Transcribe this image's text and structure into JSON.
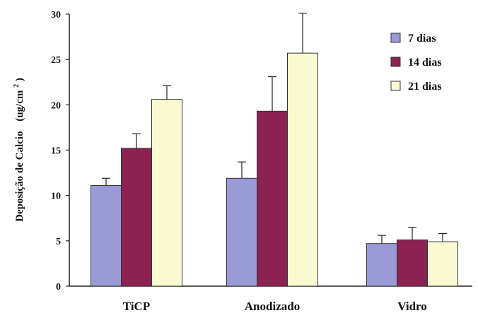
{
  "chart_data": {
    "type": "bar",
    "categories": [
      "TiCP",
      "Anodizado",
      "Vidro"
    ],
    "series": [
      {
        "name": "7 dias",
        "color": "#9a9ad6",
        "values": [
          11.1,
          11.9,
          4.7
        ],
        "errors": [
          0.8,
          1.8,
          0.9
        ]
      },
      {
        "name": "14 dias",
        "color": "#8b2252",
        "values": [
          15.2,
          19.3,
          5.1
        ],
        "errors": [
          1.6,
          3.8,
          1.4
        ]
      },
      {
        "name": "21 dias",
        "color": "#fafad2",
        "values": [
          20.6,
          25.7,
          4.9
        ],
        "errors": [
          1.5,
          4.4,
          0.9
        ]
      }
    ],
    "ylabel_main": "Deposição de Calcio",
    "ylabel_unit": "(ug/cm",
    "ylabel_sup": "2",
    "ylabel_close": ")",
    "ylim": [
      0,
      30
    ],
    "yticks": [
      "0",
      "5",
      "10",
      "15",
      "20",
      "25",
      "30"
    ],
    "legend_position": "top-right",
    "grid": false
  }
}
